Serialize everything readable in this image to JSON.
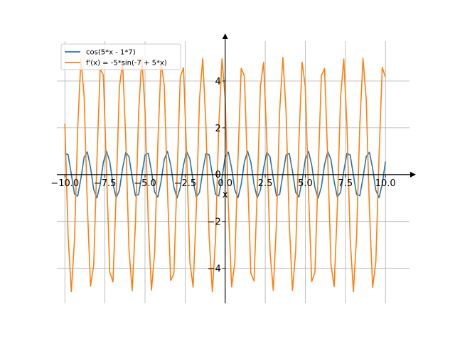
{
  "chart_data": {
    "type": "line",
    "title": "",
    "xlabel": "x",
    "ylabel": "",
    "xlim": [
      -10.5,
      11.5
    ],
    "ylim": [
      -5.5,
      5.7
    ],
    "grid": true,
    "legend_position": "top-left",
    "x_ticks": [
      -10.0,
      -7.5,
      -5.0,
      -2.5,
      0.0,
      2.5,
      5.0,
      7.5,
      10.0
    ],
    "x_tick_labels": [
      "−10.0",
      "−7.5",
      "−5.0",
      "−2.5",
      "0.0",
      "2.5",
      "5.0",
      "7.5",
      "10.0"
    ],
    "y_ticks": [
      -4,
      -2,
      0,
      2,
      4
    ],
    "y_tick_labels": [
      "−4",
      "−2",
      "0",
      "2",
      "4"
    ],
    "x_range": [
      -10,
      10
    ],
    "sample_step": 0.2,
    "series": [
      {
        "name": "cos(5*x - 1*7)",
        "color": "#1f77b4",
        "expression": "cos(5*x - 7)"
      },
      {
        "name": "f'(x) = -5*sin(-7 + 5*x)",
        "color": "#ff7f0e",
        "expression": "-5*sin(-7 + 5*x)"
      }
    ]
  }
}
